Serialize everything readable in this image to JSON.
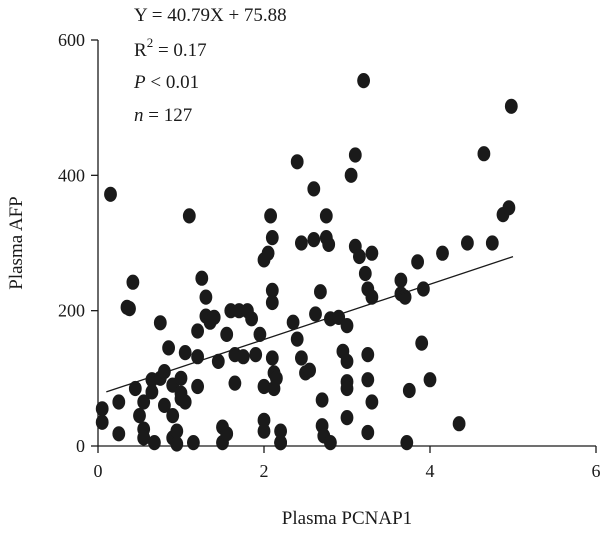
{
  "chart_data": {
    "type": "scatter",
    "xlabel": "Plasma PCNAP1",
    "ylabel": "Plasma AFP",
    "xlim": [
      0,
      6
    ],
    "ylim": [
      0,
      600
    ],
    "x_ticks": [
      "0",
      "2",
      "4",
      "6"
    ],
    "y_ticks": [
      "0",
      "200",
      "400",
      "600"
    ],
    "annotations": {
      "equation": "Y = 40.79X + 75.88",
      "r2_prefix": "R",
      "r2_exp": "2",
      "r2_value": " = 0.17",
      "p_var": "P",
      "p_value": " < 0.01",
      "n_var": "n",
      "n_value": " = 127"
    },
    "regression": {
      "slope": 40.79,
      "intercept": 75.88,
      "x_range": [
        0.1,
        5.0
      ]
    },
    "grid": false,
    "points": [
      [
        0.15,
        372
      ],
      [
        0.05,
        55
      ],
      [
        0.05,
        35
      ],
      [
        0.25,
        65
      ],
      [
        0.25,
        18
      ],
      [
        0.35,
        205
      ],
      [
        0.38,
        203
      ],
      [
        0.42,
        242
      ],
      [
        0.45,
        85
      ],
      [
        0.5,
        45
      ],
      [
        0.55,
        65
      ],
      [
        0.55,
        25
      ],
      [
        0.55,
        12
      ],
      [
        0.65,
        98
      ],
      [
        0.65,
        80
      ],
      [
        0.75,
        100
      ],
      [
        0.75,
        182
      ],
      [
        0.8,
        60
      ],
      [
        0.8,
        110
      ],
      [
        0.85,
        145
      ],
      [
        0.9,
        90
      ],
      [
        0.9,
        45
      ],
      [
        0.9,
        12
      ],
      [
        0.95,
        22
      ],
      [
        0.95,
        3
      ],
      [
        1.0,
        78
      ],
      [
        1.0,
        70
      ],
      [
        1.0,
        100
      ],
      [
        1.05,
        65
      ],
      [
        1.05,
        138
      ],
      [
        1.1,
        340
      ],
      [
        1.15,
        5
      ],
      [
        1.2,
        170
      ],
      [
        1.2,
        132
      ],
      [
        1.2,
        88
      ],
      [
        1.25,
        248
      ],
      [
        1.3,
        220
      ],
      [
        1.3,
        192
      ],
      [
        1.35,
        183
      ],
      [
        1.4,
        190
      ],
      [
        1.45,
        125
      ],
      [
        1.5,
        28
      ],
      [
        1.5,
        5
      ],
      [
        1.55,
        165
      ],
      [
        1.6,
        200
      ],
      [
        1.65,
        135
      ],
      [
        1.65,
        93
      ],
      [
        1.7,
        200
      ],
      [
        1.75,
        132
      ],
      [
        1.8,
        200
      ],
      [
        1.85,
        188
      ],
      [
        1.9,
        135
      ],
      [
        1.95,
        165
      ],
      [
        2.0,
        275
      ],
      [
        2.0,
        88
      ],
      [
        2.0,
        38
      ],
      [
        2.0,
        22
      ],
      [
        2.05,
        285
      ],
      [
        2.08,
        340
      ],
      [
        2.1,
        308
      ],
      [
        2.1,
        230
      ],
      [
        2.1,
        212
      ],
      [
        2.1,
        130
      ],
      [
        2.12,
        108
      ],
      [
        2.12,
        85
      ],
      [
        2.15,
        100
      ],
      [
        2.2,
        22
      ],
      [
        2.2,
        5
      ],
      [
        2.35,
        183
      ],
      [
        2.4,
        158
      ],
      [
        2.4,
        420
      ],
      [
        2.45,
        300
      ],
      [
        2.45,
        130
      ],
      [
        2.5,
        108
      ],
      [
        2.55,
        112
      ],
      [
        2.6,
        380
      ],
      [
        2.6,
        305
      ],
      [
        2.62,
        195
      ],
      [
        2.68,
        228
      ],
      [
        2.7,
        68
      ],
      [
        2.7,
        30
      ],
      [
        2.72,
        15
      ],
      [
        2.75,
        340
      ],
      [
        2.75,
        308
      ],
      [
        2.78,
        298
      ],
      [
        2.8,
        188
      ],
      [
        2.8,
        5
      ],
      [
        2.9,
        190
      ],
      [
        2.95,
        140
      ],
      [
        3.0,
        178
      ],
      [
        3.0,
        125
      ],
      [
        3.0,
        95
      ],
      [
        3.0,
        85
      ],
      [
        3.0,
        42
      ],
      [
        3.05,
        400
      ],
      [
        3.1,
        430
      ],
      [
        3.1,
        295
      ],
      [
        3.15,
        280
      ],
      [
        3.2,
        540
      ],
      [
        3.22,
        255
      ],
      [
        3.25,
        232
      ],
      [
        3.25,
        135
      ],
      [
        3.25,
        98
      ],
      [
        3.25,
        20
      ],
      [
        3.3,
        285
      ],
      [
        3.3,
        220
      ],
      [
        3.3,
        65
      ],
      [
        3.65,
        245
      ],
      [
        3.65,
        225
      ],
      [
        3.7,
        220
      ],
      [
        3.72,
        5
      ],
      [
        3.75,
        82
      ],
      [
        3.85,
        272
      ],
      [
        3.9,
        152
      ],
      [
        3.92,
        232
      ],
      [
        4.0,
        98
      ],
      [
        4.15,
        285
      ],
      [
        4.35,
        33
      ],
      [
        4.45,
        300
      ],
      [
        4.65,
        432
      ],
      [
        4.75,
        300
      ],
      [
        4.88,
        342
      ],
      [
        4.95,
        352
      ],
      [
        4.98,
        502
      ],
      [
        0.68,
        5
      ],
      [
        1.55,
        18
      ],
      [
        2.2,
        5
      ]
    ]
  }
}
